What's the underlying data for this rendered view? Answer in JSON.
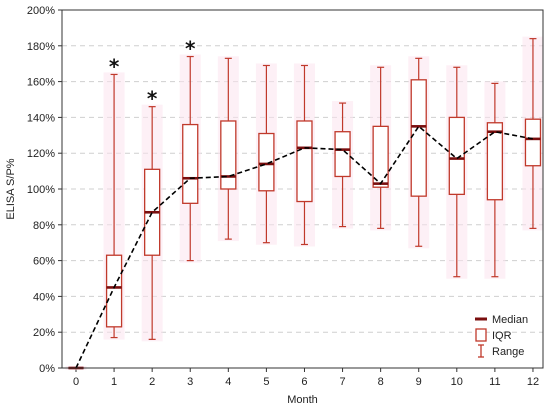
{
  "chart_data": {
    "type": "box",
    "title": "",
    "xlabel": "Month",
    "ylabel": "ELISA S/P%",
    "categories": [
      "0",
      "1",
      "2",
      "3",
      "4",
      "5",
      "6",
      "7",
      "8",
      "9",
      "10",
      "11",
      "12"
    ],
    "ylim": [
      0,
      200
    ],
    "yticks": [
      0,
      20,
      40,
      60,
      80,
      100,
      120,
      140,
      160,
      180,
      200
    ],
    "ytick_suffix": "%",
    "grid": true,
    "legend_position": "bottom-right",
    "legend": [
      {
        "key": "median",
        "label": "Median"
      },
      {
        "key": "iqr",
        "label": "IQR"
      },
      {
        "key": "range",
        "label": "Range"
      }
    ],
    "box_color": "#c0392b",
    "median_color": "#7a0e0e",
    "trend_color": "#000000",
    "boxes": [
      {
        "month": "0",
        "min": 0,
        "q1": 0,
        "median": 0,
        "q3": 0,
        "max": 0,
        "significant": false
      },
      {
        "month": "1",
        "min": 17,
        "q1": 23,
        "median": 45,
        "q3": 63,
        "max": 164,
        "significant": true
      },
      {
        "month": "2",
        "min": 16,
        "q1": 63,
        "median": 87,
        "q3": 111,
        "max": 146,
        "significant": true
      },
      {
        "month": "3",
        "min": 60,
        "q1": 92,
        "median": 106,
        "q3": 136,
        "max": 174,
        "significant": true
      },
      {
        "month": "4",
        "min": 72,
        "q1": 100,
        "median": 107,
        "q3": 138,
        "max": 173,
        "significant": false
      },
      {
        "month": "5",
        "min": 70,
        "q1": 99,
        "median": 114,
        "q3": 131,
        "max": 169,
        "significant": false
      },
      {
        "month": "6",
        "min": 69,
        "q1": 93,
        "median": 123,
        "q3": 138,
        "max": 169,
        "significant": false
      },
      {
        "month": "7",
        "min": 79,
        "q1": 107,
        "median": 122,
        "q3": 132,
        "max": 148,
        "significant": false
      },
      {
        "month": "8",
        "min": 78,
        "q1": 101,
        "median": 103,
        "q3": 135,
        "max": 168,
        "significant": false
      },
      {
        "month": "9",
        "min": 68,
        "q1": 96,
        "median": 135,
        "q3": 161,
        "max": 173,
        "significant": false
      },
      {
        "month": "10",
        "min": 51,
        "q1": 97,
        "median": 117,
        "q3": 140,
        "max": 168,
        "significant": false
      },
      {
        "month": "11",
        "min": 51,
        "q1": 94,
        "median": 132,
        "q3": 137,
        "max": 159,
        "significant": false
      },
      {
        "month": "12",
        "min": 78,
        "q1": 113,
        "median": 128,
        "q3": 139,
        "max": 184,
        "significant": false
      }
    ],
    "annotation_symbol": "*"
  }
}
